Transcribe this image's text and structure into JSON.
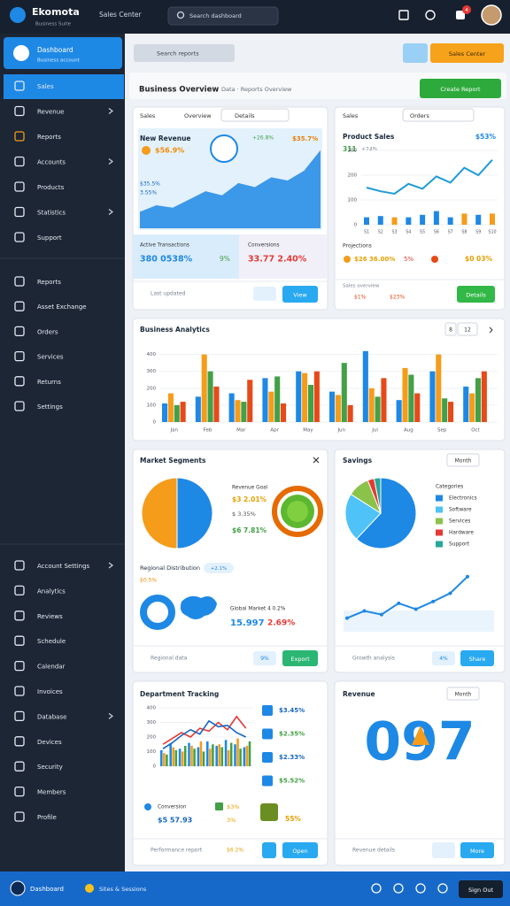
{
  "header": {
    "brand": "Ekomota",
    "tagline": "Business Suite",
    "app": "Sales Center",
    "search": "Search dashboard",
    "badge": "4"
  },
  "sidebar": {
    "top": "Dashboard",
    "top_sub": "Business account",
    "groups": [
      [
        {
          "label": "Sales",
          "active": true
        },
        {
          "label": "Revenue",
          "expandable": true
        },
        {
          "label": "Reports"
        },
        {
          "label": "Accounts",
          "expandable": true
        },
        {
          "label": "Products"
        },
        {
          "label": "Statistics",
          "expandable": true
        },
        {
          "label": "Support"
        }
      ],
      [
        {
          "label": "Reports"
        },
        {
          "label": "Asset Exchange"
        },
        {
          "label": "Orders"
        },
        {
          "label": "Services"
        },
        {
          "label": "Returns"
        },
        {
          "label": "Settings"
        }
      ],
      [
        {
          "label": "Account Settings",
          "expandable": true
        },
        {
          "label": "Analytics"
        },
        {
          "label": "Reviews"
        },
        {
          "label": "Schedule"
        },
        {
          "label": "Calendar"
        },
        {
          "label": "Invoices"
        },
        {
          "label": "Database",
          "expandable": true
        },
        {
          "label": "Devices"
        },
        {
          "label": "Security"
        },
        {
          "label": "Members"
        },
        {
          "label": "Profile"
        }
      ]
    ]
  },
  "toolbar": {
    "search": "Search reports",
    "button": "Sales Center"
  },
  "section": {
    "title": "Business Overview",
    "subtitle": "Data · Reports Overview",
    "button": "Create Report"
  },
  "card_revenue": {
    "tabs": [
      "Sales",
      "Overview",
      "Details"
    ],
    "title": "New Revenue",
    "kpi": "$56.9%",
    "delta": "+26.8%",
    "kpi_right": "$35.7%",
    "side1": "$35.5%",
    "side2": "3.55%",
    "chart": {
      "values": [
        20,
        28,
        25,
        35,
        45,
        40,
        55,
        50,
        62,
        58,
        70,
        95
      ],
      "ylim": [
        0,
        100
      ],
      "color": "#1e88e5"
    },
    "stat_left_label": "Active Transactions",
    "stat_left_value": "380 0538%",
    "stat_left_delta": "9%",
    "stat_right_label": "Conversions",
    "stat_right_value": "33.77 2.40%",
    "footer": "Last updated",
    "button": "View"
  },
  "card_products": {
    "tabs": [
      "Sales",
      "Orders"
    ],
    "title": "Product Sales",
    "kpi": "$53%",
    "count": "311",
    "delta": "+24%",
    "chart": {
      "categories": [
        "S1",
        "S2",
        "S3",
        "S4",
        "S5",
        "S6",
        "S7",
        "S8",
        "S9",
        "S10"
      ],
      "line": [
        150,
        135,
        125,
        165,
        145,
        195,
        170,
        230,
        200,
        262
      ],
      "bars": [
        30,
        35,
        30,
        30,
        40,
        55,
        30,
        45,
        40,
        45
      ],
      "bar_colors": [
        "#1e88e5",
        "#1e88e5",
        "#f59c1a",
        "#1e88e5",
        "#1e88e5",
        "#1e88e5",
        "#1e88e5",
        "#f59c1a",
        "#1e88e5",
        "#f59c1a"
      ],
      "line_color": "#1e9bd7",
      "ylim": [
        0,
        300
      ],
      "yticks": [
        0,
        100,
        200,
        300
      ]
    },
    "stats_label": "Projections",
    "stat1": "$26 36.00%",
    "stat2": "5%",
    "stat3": "$0 03%",
    "footer": "Sales overview",
    "foot1": "$1%",
    "foot2": "$23%",
    "button": "Details"
  },
  "card_business": {
    "title": "Business Analytics",
    "filter": "8",
    "range": "12",
    "chart": {
      "categories": [
        "Jan",
        "Feb",
        "Mar",
        "Apr",
        "May",
        "Jun",
        "Jul",
        "Aug",
        "Sep",
        "Oct"
      ],
      "ylim": [
        0,
        440
      ],
      "yticks": [
        0,
        100,
        200,
        300,
        400
      ],
      "series": [
        {
          "color": "#1e88e5",
          "values": [
            110,
            150,
            170,
            260,
            300,
            180,
            420,
            130,
            300,
            210
          ]
        },
        {
          "color": "#f59c1a",
          "values": [
            170,
            400,
            130,
            180,
            290,
            160,
            200,
            320,
            400,
            170
          ]
        },
        {
          "color": "#43a047",
          "values": [
            100,
            300,
            120,
            270,
            220,
            350,
            150,
            280,
            140,
            260
          ]
        },
        {
          "color": "#e64a19",
          "values": [
            120,
            210,
            250,
            110,
            300,
            100,
            260,
            170,
            120,
            300
          ]
        }
      ]
    }
  },
  "card_segments": {
    "title": "Market Segments",
    "pie": {
      "values": [
        50,
        50
      ],
      "colors": [
        "#1e88e5",
        "#f59c1a"
      ]
    },
    "goal_label": "Revenue Goal",
    "goal1": "$3 2.01%",
    "goal2": "$ 3.35%",
    "goal3": "$6 7.81%",
    "sub_title": "Regional Distribution",
    "sub_badge": "+2.1%",
    "sub_note": "$0.5%",
    "market_label": "Global Market 4 0.2%",
    "market_value": "15.997",
    "market_delta": "2.69%",
    "footer": "Regional data",
    "foot_badge": "9%",
    "button": "Export"
  },
  "card_savings": {
    "title": "Savings",
    "period": "Month",
    "legend_title": "Categories",
    "pie": {
      "values": [
        62,
        22,
        10,
        3,
        3
      ],
      "labels": [
        "Electronics",
        "Software",
        "Services",
        "Hardware",
        "Support"
      ],
      "colors": [
        "#1e88e5",
        "#4fc3f7",
        "#8bc34a",
        "#e53935",
        "#26a69a"
      ]
    },
    "line": {
      "values": [
        20,
        32,
        26,
        45,
        35,
        48,
        62,
        90
      ],
      "ylim": [
        0,
        100
      ],
      "color": "#1e88e5"
    },
    "footer": "Growth analysis",
    "foot_badge": "4%",
    "button": "Share"
  },
  "card_department": {
    "title": "Department Tracking",
    "chart": {
      "ylim": [
        0,
        400
      ],
      "yticks": [
        0,
        100,
        200,
        300,
        400
      ],
      "bars": [
        {
          "color": "#1e88e5",
          "values": [
            110,
            150,
            120,
            160,
            130,
            170,
            140,
            180,
            150,
            130
          ]
        },
        {
          "color": "#f59c1a",
          "values": [
            90,
            130,
            100,
            140,
            170,
            120,
            150,
            110,
            190,
            140
          ]
        },
        {
          "color": "#43a047",
          "values": [
            80,
            110,
            140,
            120,
            100,
            150,
            130,
            160,
            120,
            170
          ]
        }
      ],
      "lines": [
        {
          "color": "#e53935",
          "values": [
            150,
            190,
            230,
            200,
            260,
            240,
            300,
            250,
            340,
            260
          ]
        },
        {
          "color": "#1565c0",
          "values": [
            120,
            160,
            210,
            250,
            220,
            310,
            270,
            280,
            230,
            200
          ]
        }
      ]
    },
    "stats": [
      "$3.45%",
      "$2.35%",
      "$2.33%",
      "$5.52%"
    ],
    "conv_label": "Conversion",
    "conv_value": "$5 57.93",
    "conv1": "$3%",
    "conv2": "3%",
    "conv3": "55%",
    "footer": "Performance report",
    "foot_badge": "$6 2%",
    "button": "Open"
  },
  "card_summary": {
    "title": "Revenue",
    "period": "Month",
    "big": "097",
    "footer": "Revenue details",
    "button": "More"
  },
  "bottom": {
    "brand": "Dashboard",
    "sites": "Sites & Sessions",
    "button": "Sign Out"
  }
}
